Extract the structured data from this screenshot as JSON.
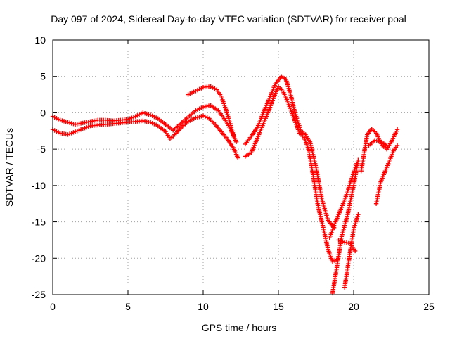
{
  "chart_data": {
    "type": "scatter",
    "title": "Day 097 of 2024, Sidereal Day-to-day VTEC variation (SDTVAR) for receiver poal",
    "xlabel": "GPS time / hours",
    "ylabel": "SDTVAR / TECUs",
    "xlim": [
      0,
      25
    ],
    "ylim": [
      -25,
      10
    ],
    "xticks": [
      0,
      5,
      10,
      15,
      20,
      25
    ],
    "yticks": [
      -25,
      -20,
      -15,
      -10,
      -5,
      0,
      5,
      10
    ],
    "xtick_labels": [
      "0",
      "5",
      "10",
      "15",
      "20",
      "25"
    ],
    "ytick_labels": [
      "-25",
      "-20",
      "-15",
      "-10",
      "-5",
      "0",
      "5",
      "10"
    ],
    "grid": true,
    "grid_style": "dotted",
    "marker": "plus",
    "marker_color": "#ff0000",
    "series": [
      {
        "x": [
          0.0,
          0.5,
          1.0,
          1.5,
          2.0,
          2.5,
          3.0,
          3.5,
          4.0,
          4.5,
          5.0,
          5.5,
          6.0,
          6.5,
          7.0,
          7.5,
          7.8,
          8.2,
          8.6,
          9.0,
          9.5,
          10.0,
          10.4,
          10.8,
          11.2,
          11.6,
          12.0,
          12.3
        ],
        "y": [
          -2.3,
          -2.8,
          -3.0,
          -2.6,
          -2.2,
          -1.8,
          -1.7,
          -1.6,
          -1.5,
          -1.4,
          -1.3,
          -1.2,
          -1.1,
          -1.3,
          -1.8,
          -2.6,
          -3.6,
          -2.8,
          -1.9,
          -1.2,
          -0.7,
          -0.4,
          -0.8,
          -1.6,
          -2.6,
          -3.6,
          -4.8,
          -6.2
        ]
      },
      {
        "x": [
          0.0,
          0.5,
          1.0,
          1.5,
          2.0,
          2.5,
          3.0,
          3.5,
          4.0,
          4.5,
          5.0,
          5.5,
          6.0,
          6.5,
          7.0,
          7.5,
          8.0,
          8.5,
          9.0,
          9.5,
          10.0,
          10.5,
          11.0,
          11.4,
          11.8,
          12.2
        ],
        "y": [
          -0.5,
          -1.0,
          -1.3,
          -1.6,
          -1.4,
          -1.2,
          -1.0,
          -1.0,
          -1.1,
          -1.0,
          -0.9,
          -0.5,
          0.0,
          -0.3,
          -0.8,
          -1.6,
          -2.4,
          -1.5,
          -0.6,
          0.3,
          0.8,
          1.0,
          0.3,
          -0.8,
          -2.2,
          -4.0
        ]
      },
      {
        "x": [
          9.0,
          9.5,
          10.0,
          10.5,
          10.9,
          11.2,
          11.5,
          11.8,
          12.0
        ],
        "y": [
          2.5,
          3.0,
          3.5,
          3.6,
          3.2,
          2.3,
          0.5,
          -1.5,
          -3.0
        ]
      },
      {
        "x": [
          12.8,
          13.2,
          13.6,
          14.0,
          14.4,
          14.8,
          15.2,
          15.5,
          15.8,
          16.1,
          16.5,
          16.8,
          17.1,
          17.5,
          17.9,
          18.3,
          18.7
        ],
        "y": [
          -4.3,
          -3.2,
          -2.0,
          0.0,
          2.0,
          4.0,
          5.0,
          4.6,
          2.6,
          0.0,
          -2.5,
          -3.0,
          -4.0,
          -7.5,
          -12.0,
          -14.8,
          -15.8
        ]
      },
      {
        "x": [
          12.8,
          13.2,
          13.6,
          14.0,
          14.4,
          14.7,
          15.0,
          15.3,
          15.6,
          16.0,
          16.4,
          16.7,
          17.0,
          17.3,
          17.6,
          18.0,
          18.3,
          18.6,
          18.9
        ],
        "y": [
          -6.0,
          -5.5,
          -3.5,
          -1.5,
          0.5,
          2.2,
          3.6,
          3.0,
          1.6,
          -0.6,
          -2.8,
          -3.4,
          -5.0,
          -8.5,
          -12.5,
          -16.0,
          -18.8,
          -20.5,
          -20.2
        ]
      },
      {
        "x": [
          18.6,
          18.9,
          19.2,
          19.6,
          20.0,
          20.3
        ],
        "y": [
          -24.8,
          -21.0,
          -17.0,
          -14.0,
          -10.0,
          -6.5
        ]
      },
      {
        "x": [
          18.4,
          18.7,
          19.0,
          19.4,
          19.8,
          20.2
        ],
        "y": [
          -17.2,
          -15.5,
          -14.0,
          -12.0,
          -9.5,
          -7.0
        ]
      },
      {
        "x": [
          19.0,
          19.4,
          19.8,
          20.1
        ],
        "y": [
          -17.5,
          -17.8,
          -18.0,
          -19.0
        ]
      },
      {
        "x": [
          19.4,
          19.7,
          20.0,
          20.3
        ],
        "y": [
          -24.0,
          -20.0,
          -16.0,
          -14.0
        ]
      },
      {
        "x": [
          20.5,
          20.9,
          21.2,
          21.5,
          21.9,
          22.2,
          22.5,
          22.9
        ],
        "y": [
          -8.0,
          -3.0,
          -2.2,
          -2.8,
          -4.5,
          -5.0,
          -4.0,
          -2.3
        ]
      },
      {
        "x": [
          21.5,
          21.8,
          22.1,
          22.4,
          22.7,
          22.9
        ],
        "y": [
          -12.5,
          -9.5,
          -8.0,
          -6.5,
          -5.0,
          -4.5
        ]
      },
      {
        "x": [
          21.0,
          21.4,
          21.8,
          22.2
        ],
        "y": [
          -4.5,
          -3.8,
          -4.0,
          -4.5
        ]
      }
    ]
  }
}
